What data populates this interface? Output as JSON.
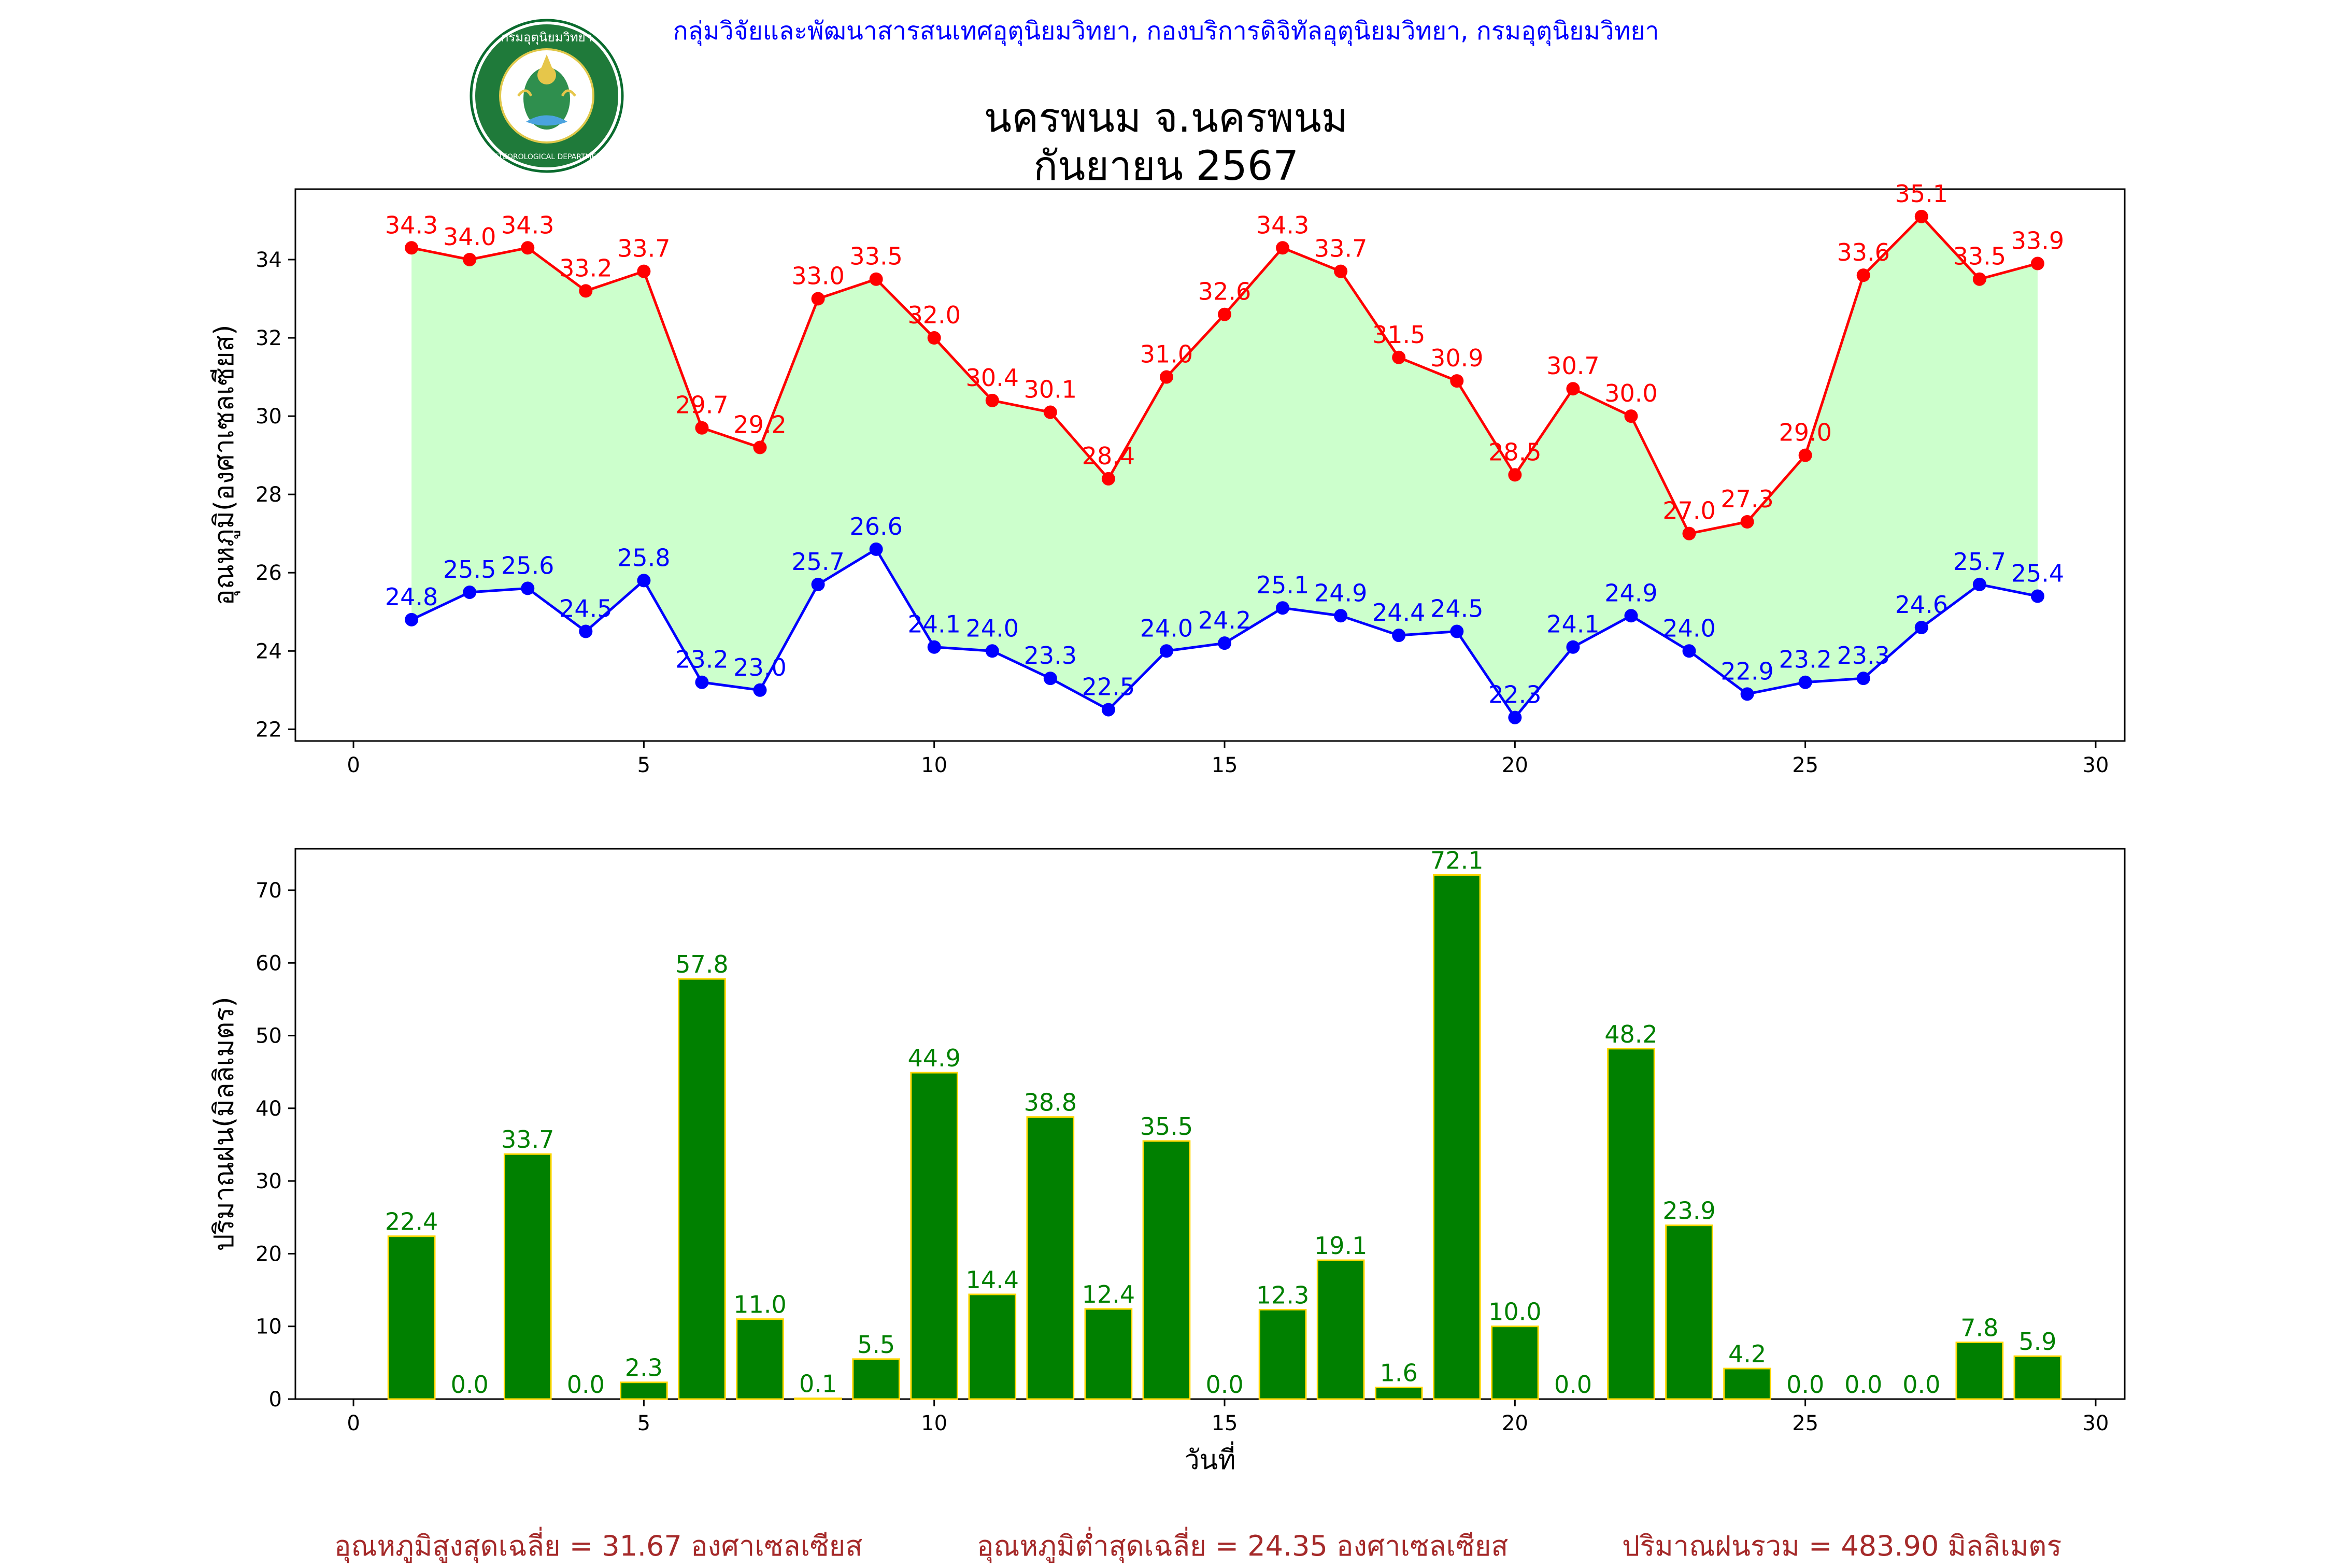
{
  "header": {
    "credit": "กลุ่มวิจัยและพัฒนาสารสนเทศอุตุนิยมวิทยา, กองบริการดิจิทัลอุตุนิยมวิทยา, กรมอุตุนิยมวิทยา",
    "title_line1": "นครพนม จ.นครพนม",
    "title_line2": "กันยายน 2567",
    "logo": {
      "top_text": "กรมอุตุนิยมวิทยา",
      "bottom_text": "METEOROLOGICAL DEPARTMENT"
    }
  },
  "footer": {
    "avg_max": "อุณหภูมิสูงสุดเฉลี่ย = 31.67 องศาเซลเซียส",
    "avg_min": "อุณหภูมิต่ำสุดเฉลี่ย = 24.35 องศาเซลเซียส",
    "total_rain": "ปริมาณฝนรวม = 483.90 มิลลิเมตร"
  },
  "colors": {
    "max_line": "#ff0000",
    "min_line": "#0000ff",
    "fill": "#ccffcc",
    "bar": "#008000",
    "bar_edge": "#ffd700",
    "bar_label": "#008000",
    "credit": "#0000ff",
    "footer": "#a52a2a"
  },
  "chart_data": [
    {
      "type": "line",
      "ylabel": "อุณหภูมิ(องศาเซลเซียส)",
      "xlabel": "",
      "xlim": [
        -1,
        30.5
      ],
      "ylim": [
        21.7,
        35.8
      ],
      "xticks": [
        0,
        5,
        10,
        15,
        20,
        25,
        30
      ],
      "yticks": [
        22,
        24,
        26,
        28,
        30,
        32,
        34
      ],
      "grid": false,
      "x": [
        1,
        2,
        3,
        4,
        5,
        6,
        7,
        8,
        9,
        10,
        11,
        12,
        13,
        14,
        15,
        16,
        17,
        18,
        19,
        20,
        21,
        22,
        23,
        24,
        25,
        26,
        27,
        28,
        29
      ],
      "series": [
        {
          "key": "max",
          "color": "#ff0000",
          "values": [
            34.3,
            34.0,
            34.3,
            33.2,
            33.7,
            29.7,
            29.2,
            33.0,
            33.5,
            32.0,
            30.4,
            30.1,
            28.4,
            31.0,
            32.6,
            34.3,
            33.7,
            31.5,
            30.9,
            28.5,
            30.7,
            30.0,
            27.0,
            27.3,
            29.0,
            33.6,
            35.1,
            33.5,
            33.9
          ]
        },
        {
          "key": "min",
          "color": "#0000ff",
          "values": [
            24.8,
            25.5,
            25.6,
            24.5,
            25.8,
            23.2,
            23.0,
            25.7,
            26.6,
            24.1,
            24.0,
            23.3,
            22.5,
            24.0,
            24.2,
            25.1,
            24.9,
            24.4,
            24.5,
            22.3,
            24.1,
            24.9,
            24.0,
            22.9,
            23.2,
            23.3,
            24.6,
            25.7,
            25.4
          ]
        }
      ],
      "fill_between": "max-min"
    },
    {
      "type": "bar",
      "ylabel": "ปริมาณฝน(มิลลิเมตร)",
      "xlabel": "วันที่",
      "xlim": [
        -1,
        30.5
      ],
      "ylim": [
        0,
        75.7
      ],
      "xticks": [
        0,
        5,
        10,
        15,
        20,
        25,
        30
      ],
      "yticks": [
        0,
        10,
        20,
        30,
        40,
        50,
        60,
        70
      ],
      "grid": false,
      "x": [
        1,
        2,
        3,
        4,
        5,
        6,
        7,
        8,
        9,
        10,
        11,
        12,
        13,
        14,
        15,
        16,
        17,
        18,
        19,
        20,
        21,
        22,
        23,
        24,
        25,
        26,
        27,
        28,
        29
      ],
      "values": [
        22.4,
        0.0,
        33.7,
        0.0,
        2.3,
        57.8,
        11.0,
        0.1,
        5.5,
        44.9,
        14.4,
        38.8,
        12.4,
        35.5,
        0.0,
        12.3,
        19.1,
        1.6,
        72.1,
        10.0,
        0.0,
        48.2,
        23.9,
        4.2,
        0.0,
        0.0,
        0.0,
        7.8,
        5.9
      ]
    }
  ]
}
